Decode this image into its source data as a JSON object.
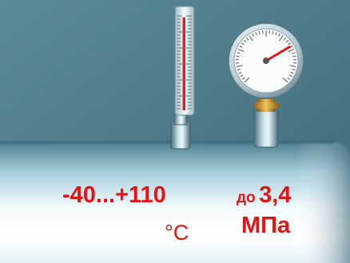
{
  "thermometer": {
    "range": "-40...+110",
    "unit": "°C"
  },
  "gauge": {
    "prefix": "до",
    "value": "3,4",
    "unit": "МПа",
    "needle_position": 0.72
  },
  "colors": {
    "background": "#4f7d8c",
    "pipe": "#d7eef7",
    "label": "#e41414",
    "thermometer_liquid": "#cc2a2a",
    "gauge_needle": "#e41414",
    "gauge_fitting": "#d4a23c"
  },
  "icons": [
    "thermometer-icon",
    "pressure-gauge-icon",
    "pipe-icon"
  ]
}
